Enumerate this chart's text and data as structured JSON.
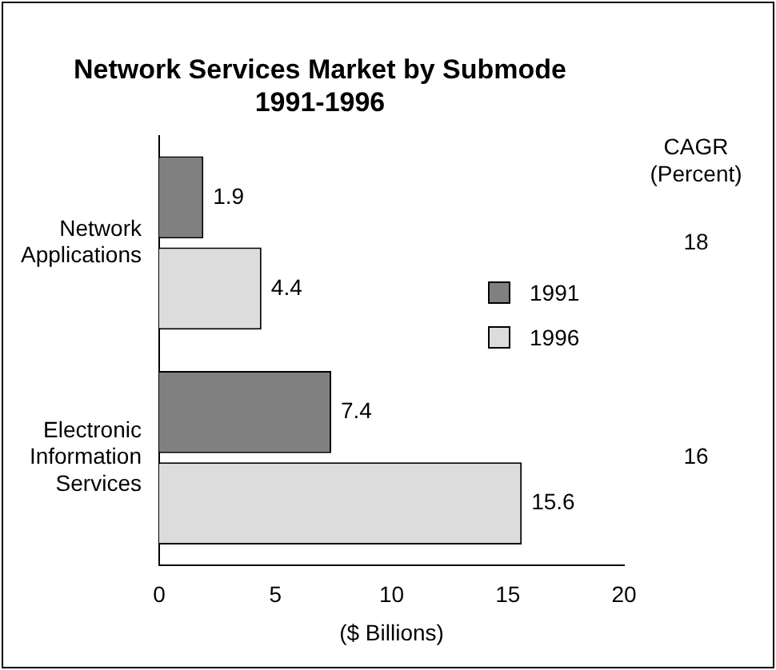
{
  "chart_data": {
    "type": "bar",
    "orientation": "horizontal",
    "title": "Network Services Market by Submode",
    "subtitle": "1991-1996",
    "xlabel": "($ Billions)",
    "categories": [
      "Network Applications",
      "Electronic Information Services"
    ],
    "series": [
      {
        "name": "1991",
        "color": "#808080",
        "values": [
          1.9,
          7.4
        ]
      },
      {
        "name": "1996",
        "color": "#dcdcdc",
        "values": [
          4.4,
          15.6
        ]
      }
    ],
    "xlim": [
      0,
      20
    ],
    "xticks": [
      0,
      5,
      10,
      15,
      20
    ],
    "grid": false,
    "legend": "right",
    "data_labels": true,
    "annotations": [
      "CAGR\n(Percent)",
      "18",
      "16"
    ]
  }
}
